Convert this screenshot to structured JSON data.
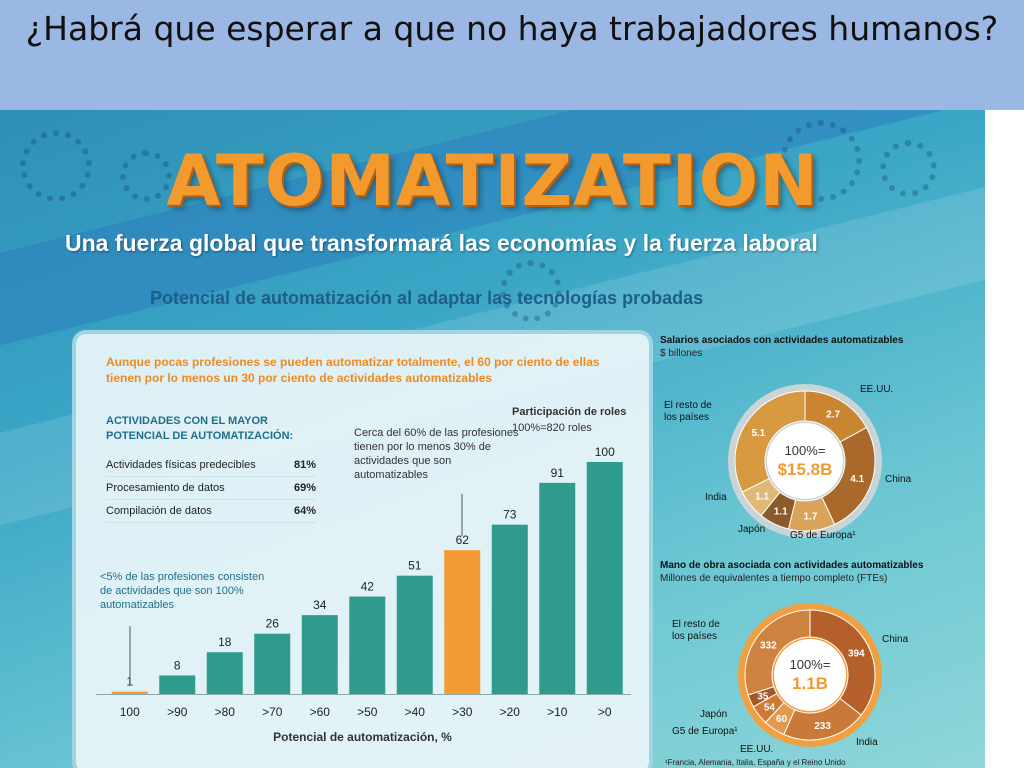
{
  "slide": {
    "title": "¿Habrá que esperar a que no haya trabajadores humanos?"
  },
  "infographic": {
    "brand": "ATOMATIZATION",
    "subtitle": "Una fuerza global que transformará las economías y la fuerza laboral",
    "subheading": "Potencial de automatización al adaptar las tecnologías probadas",
    "intro": "Aunque pocas profesiones se pueden automatizar totalmente, el 60 por ciento de ellas tienen por lo menos un 30 por ciento de actividades automatizables",
    "activities": {
      "heading": "ACTIVIDADES CON EL MAYOR POTENCIAL DE AUTOMATIZACIÓN:",
      "items": [
        {
          "label": "Actividades físicas predecibles",
          "pct": "81%"
        },
        {
          "label": "Procesamiento de datos",
          "pct": "69%"
        },
        {
          "label": "Compilación de datos",
          "pct": "64%"
        }
      ]
    },
    "cerca_note": "Cerca del 60% de las profesiones tienen por lo menos 30% de actividades que son automatizables",
    "roles_title": "Participación de roles",
    "roles_sub": "100%=820 roles",
    "low_note": "<5% de las profesiones consisten de actividades que son 100% automatizables",
    "x_axis_label": "Potencial de automatización, %",
    "salarios": {
      "title": "Salarios asociados con actividades automatizables",
      "unit": "$ billones",
      "center_top": "100%=",
      "center_value": "$15.8B",
      "labels": [
        "EE.UU.",
        "China",
        "G5 de Europa¹",
        "Japón",
        "India",
        "El resto de los países"
      ],
      "values": [
        "2.7",
        "4.1",
        "1.7",
        "1.1",
        "1.1",
        "5.1"
      ]
    },
    "mano": {
      "title": "Mano de obra asociada con actividades automatizables",
      "unit": "Millones de equivalentes a tiempo completo (FTEs)",
      "center_top": "100%=",
      "center_value": "1.1B",
      "labels": [
        "China",
        "India",
        "EE.UU.",
        "G5 de Europa¹",
        "Japón",
        "El resto de los países"
      ],
      "values": [
        "394",
        "233",
        "60",
        "54",
        "35",
        "332"
      ]
    },
    "footnote": "¹Francia, Alemania, Italia, España y el Reino Unido",
    "colors": {
      "bar": "#2f9a8e",
      "highlight_bar": "#f39a33",
      "accent": "#f29a2e",
      "panel_border": "#9ed5e3"
    }
  },
  "chart_data": {
    "type": "bar",
    "categories": [
      "100",
      ">90",
      ">80",
      ">70",
      ">60",
      ">50",
      ">40",
      ">30",
      ">20",
      ">10",
      ">0"
    ],
    "values": [
      1,
      8,
      18,
      26,
      34,
      42,
      51,
      62,
      73,
      91,
      100
    ],
    "highlight_index": 7,
    "title": "Participación de roles",
    "xlabel": "Potencial de automatización, %",
    "ylabel": "",
    "ylim": [
      0,
      100
    ],
    "grid": false
  }
}
